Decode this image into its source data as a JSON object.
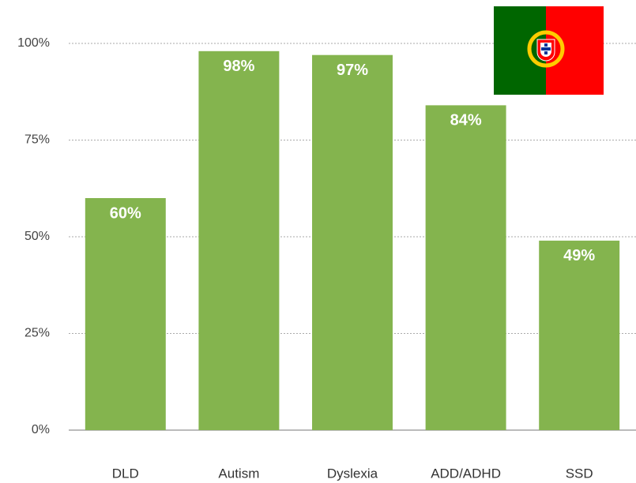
{
  "chart_data": {
    "type": "bar",
    "categories": [
      "DLD",
      "Autism",
      "Dyslexia",
      "ADD/ADHD",
      "SSD"
    ],
    "values": [
      60,
      98,
      97,
      84,
      49
    ],
    "value_labels": [
      "60%",
      "98%",
      "97%",
      "84%",
      "49%"
    ],
    "color": "#84b44e",
    "ylim": [
      0,
      100
    ],
    "yticks": [
      {
        "value": 0,
        "label": "0%"
      },
      {
        "value": 25,
        "label": "25%"
      },
      {
        "value": 50,
        "label": "50%"
      },
      {
        "value": 75,
        "label": "75%"
      },
      {
        "value": 100,
        "label": "100%"
      }
    ],
    "grid": true
  }
}
